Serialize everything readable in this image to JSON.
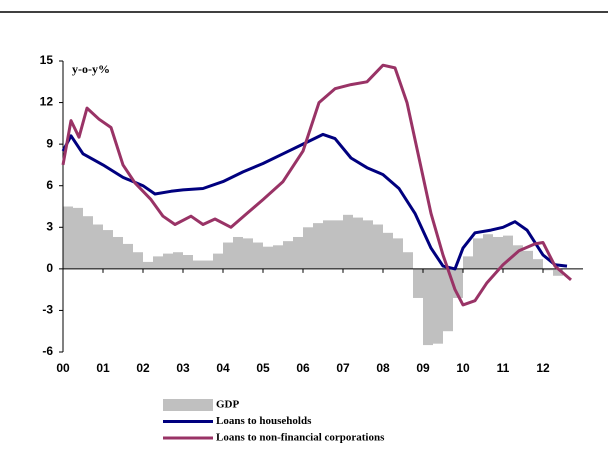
{
  "chart_data": {
    "type": "combo",
    "subtitle": "y-o-y%",
    "xlim": [
      0,
      13
    ],
    "xticks": [
      {
        "value": 0,
        "label": "00"
      },
      {
        "value": 1,
        "label": "01"
      },
      {
        "value": 2,
        "label": "02"
      },
      {
        "value": 3,
        "label": "03"
      },
      {
        "value": 4,
        "label": "04"
      },
      {
        "value": 5,
        "label": "05"
      },
      {
        "value": 6,
        "label": "06"
      },
      {
        "value": 7,
        "label": "07"
      },
      {
        "value": 8,
        "label": "08"
      },
      {
        "value": 9,
        "label": "09"
      },
      {
        "value": 10,
        "label": "10"
      },
      {
        "value": 11,
        "label": "11"
      },
      {
        "value": 12,
        "label": "12"
      }
    ],
    "ylim": [
      -6,
      15
    ],
    "yticks": [
      -6,
      -3,
      0,
      3,
      6,
      9,
      12,
      15
    ],
    "series": [
      {
        "name": "GDP",
        "type": "bar",
        "color": "#c0c0c0",
        "x": [
          0,
          0.25,
          0.5,
          0.75,
          1,
          1.25,
          1.5,
          1.75,
          2,
          2.25,
          2.5,
          2.75,
          3,
          3.25,
          3.5,
          3.75,
          4,
          4.25,
          4.5,
          4.75,
          5,
          5.25,
          5.5,
          5.75,
          6,
          6.25,
          6.5,
          6.75,
          7,
          7.25,
          7.5,
          7.75,
          8,
          8.25,
          8.5,
          8.75,
          9,
          9.25,
          9.5,
          9.75,
          10,
          10.25,
          10.5,
          10.75,
          11,
          11.25,
          11.5,
          11.75,
          12,
          12.25
        ],
        "values": [
          4.5,
          4.4,
          3.8,
          3.2,
          2.8,
          2.3,
          1.8,
          1.2,
          0.5,
          0.9,
          1.1,
          1.2,
          1.0,
          0.6,
          0.6,
          1.1,
          1.9,
          2.3,
          2.2,
          1.9,
          1.6,
          1.7,
          2.0,
          2.3,
          3.0,
          3.3,
          3.5,
          3.5,
          3.9,
          3.7,
          3.5,
          3.2,
          2.6,
          2.2,
          1.2,
          -2.1,
          -5.5,
          -5.4,
          -4.5,
          -2.1,
          0.9,
          2.2,
          2.5,
          2.3,
          2.4,
          1.7,
          1.3,
          0.7,
          -0.1,
          -0.5
        ]
      },
      {
        "name": "Loans to households",
        "type": "line",
        "color": "#00007f",
        "x": [
          0,
          0.2,
          0.5,
          1,
          1.5,
          2,
          2.3,
          2.7,
          3,
          3.5,
          4,
          4.5,
          5,
          5.5,
          6,
          6.5,
          6.8,
          7.2,
          7.6,
          8,
          8.4,
          8.8,
          9.2,
          9.5,
          9.8,
          10,
          10.3,
          10.7,
          11,
          11.3,
          11.6,
          12,
          12.3,
          12.6
        ],
        "values": [
          8.5,
          9.6,
          8.3,
          7.5,
          6.6,
          6.0,
          5.4,
          5.6,
          5.7,
          5.8,
          6.3,
          7.0,
          7.6,
          8.3,
          9.0,
          9.7,
          9.4,
          8.0,
          7.3,
          6.8,
          5.8,
          4.0,
          1.5,
          0.2,
          0.0,
          1.5,
          2.6,
          2.8,
          3.0,
          3.4,
          2.8,
          1.0,
          0.3,
          0.2
        ]
      },
      {
        "name": "Loans to non-financial corporations",
        "type": "line",
        "color": "#993366",
        "x": [
          0,
          0.2,
          0.4,
          0.6,
          0.9,
          1.2,
          1.5,
          1.8,
          2.2,
          2.5,
          2.8,
          3.2,
          3.5,
          3.8,
          4.2,
          4.6,
          5,
          5.5,
          6,
          6.4,
          6.8,
          7.2,
          7.6,
          8,
          8.3,
          8.6,
          8.9,
          9.2,
          9.5,
          9.8,
          10,
          10.3,
          10.6,
          11,
          11.4,
          11.8,
          12,
          12.3,
          12.7
        ],
        "values": [
          7.5,
          10.7,
          9.5,
          11.6,
          10.8,
          10.2,
          7.5,
          6.2,
          5.0,
          3.8,
          3.2,
          3.8,
          3.2,
          3.6,
          3.0,
          4.0,
          5.0,
          6.3,
          8.5,
          12.0,
          13.0,
          13.3,
          13.5,
          14.7,
          14.5,
          12.0,
          8.0,
          4.0,
          1.0,
          -1.5,
          -2.6,
          -2.3,
          -1.0,
          0.3,
          1.3,
          1.8,
          1.9,
          0.2,
          -0.8
        ]
      }
    ]
  }
}
